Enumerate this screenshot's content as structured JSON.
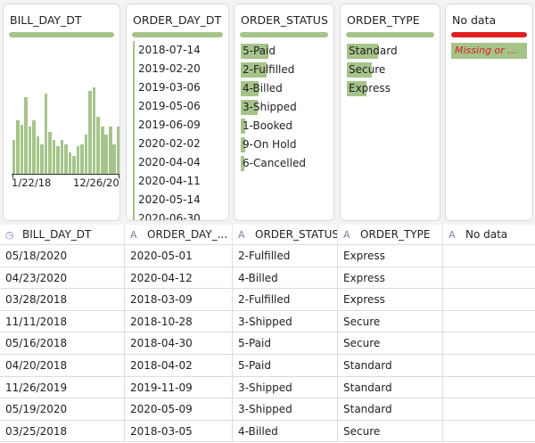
{
  "accent_green": "#a6c48a",
  "alert_red": "#e02020",
  "profiles": {
    "bill_day": {
      "title": "BILL_DAY_DT",
      "hist_counts": [
        35,
        55,
        50,
        78,
        48,
        55,
        38,
        30,
        82,
        43,
        35,
        28,
        35,
        30,
        22,
        18,
        28,
        30,
        40,
        85,
        88,
        58,
        48,
        40,
        48,
        30,
        48
      ],
      "axis_min_label": "1/22/18",
      "axis_max_label": "12/26/20"
    },
    "order_day": {
      "title": "ORDER_DAY_DT",
      "values": [
        "2018-07-14",
        "2019-02-20",
        "2019-03-06",
        "2019-05-06",
        "2019-06-09",
        "2020-02-02",
        "2020-04-04",
        "2020-04-11",
        "2020-05-14",
        "2020-06-30"
      ]
    },
    "order_status": {
      "title": "ORDER_STATUS",
      "items": [
        {
          "label": "5-Paid",
          "fraction": 1.0
        },
        {
          "label": "2-Fulfilled",
          "fraction": 0.93
        },
        {
          "label": "4-Billed",
          "fraction": 0.66
        },
        {
          "label": "3-Shipped",
          "fraction": 0.6
        },
        {
          "label": "1-Booked",
          "fraction": 0.17
        },
        {
          "label": "9-On Hold",
          "fraction": 0.17
        },
        {
          "label": "6-Cancelled",
          "fraction": 0.14
        }
      ]
    },
    "order_type": {
      "title": "ORDER_TYPE",
      "items": [
        {
          "label": "Standard",
          "fraction": 1.0
        },
        {
          "label": "Secure",
          "fraction": 0.8
        },
        {
          "label": "Express",
          "fraction": 0.62
        }
      ]
    },
    "no_data": {
      "title": "No data",
      "tag": "Missing or ..."
    }
  },
  "grid": {
    "headers": [
      {
        "icon": "clock-icon",
        "glyph": "◷",
        "label": "BILL_DAY_DT"
      },
      {
        "icon": "text-type-icon",
        "glyph": "A",
        "label": "ORDER_DAY_..."
      },
      {
        "icon": "text-type-icon",
        "glyph": "A",
        "label": "ORDER_STATUS..."
      },
      {
        "icon": "text-type-icon",
        "glyph": "A",
        "label": "ORDER_TYPE"
      },
      {
        "icon": "text-type-icon",
        "glyph": "A",
        "label": "No data"
      }
    ],
    "rows": [
      [
        "05/18/2020",
        "2020-05-01",
        "2-Fulfilled",
        "Express",
        ""
      ],
      [
        "04/23/2020",
        "2020-04-12",
        "4-Billed",
        "Express",
        ""
      ],
      [
        "03/28/2018",
        "2018-03-09",
        "2-Fulfilled",
        "Express",
        ""
      ],
      [
        "11/11/2018",
        "2018-10-28",
        "3-Shipped",
        "Secure",
        ""
      ],
      [
        "05/16/2018",
        "2018-04-30",
        "5-Paid",
        "Secure",
        ""
      ],
      [
        "04/20/2018",
        "2018-04-02",
        "5-Paid",
        "Standard",
        ""
      ],
      [
        "11/26/2019",
        "2019-11-09",
        "3-Shipped",
        "Standard",
        ""
      ],
      [
        "05/19/2020",
        "2020-05-09",
        "3-Shipped",
        "Standard",
        ""
      ],
      [
        "03/25/2018",
        "2018-03-05",
        "4-Billed",
        "Secure",
        ""
      ]
    ]
  }
}
